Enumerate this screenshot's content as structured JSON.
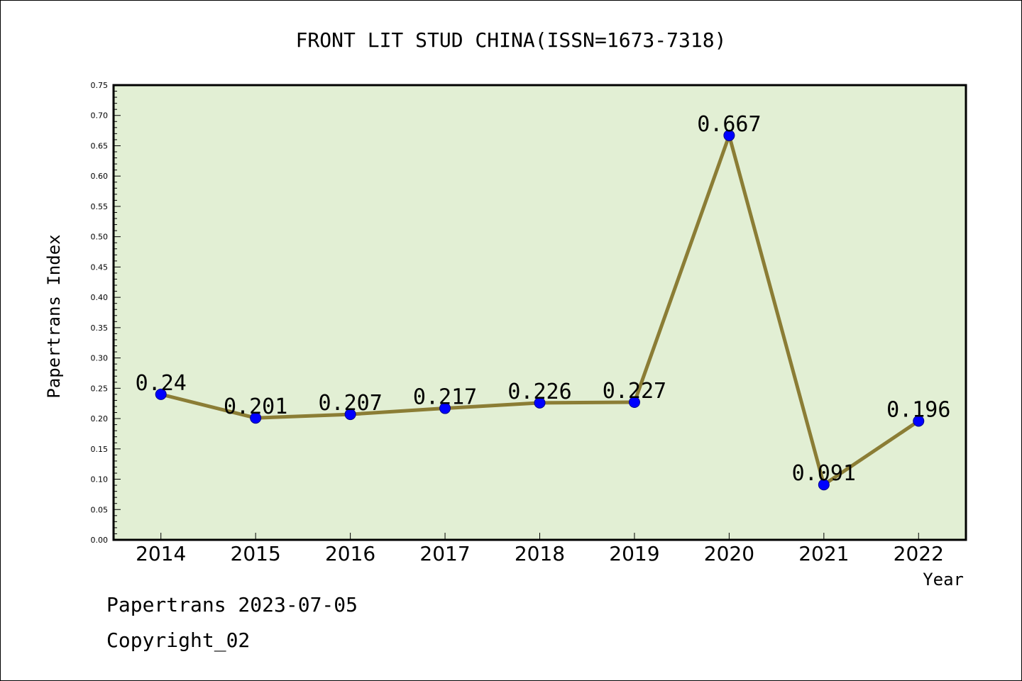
{
  "chart_data": {
    "type": "line",
    "title": "FRONT LIT STUD CHINA(ISSN=1673-7318)",
    "xlabel": "Year",
    "ylabel": "Papertrans Index",
    "categories": [
      "2014",
      "2015",
      "2016",
      "2017",
      "2018",
      "2019",
      "2020",
      "2021",
      "2022"
    ],
    "values": [
      0.24,
      0.201,
      0.207,
      0.217,
      0.226,
      0.227,
      0.667,
      0.091,
      0.196
    ],
    "data_labels": [
      "0.24",
      "0.201",
      "0.207",
      "0.217",
      "0.226",
      "0.227",
      "0.667",
      "0.091",
      "0.196"
    ],
    "ylim": [
      0,
      0.75
    ],
    "yticks": [
      "0.00",
      "0.05",
      "0.10",
      "0.15",
      "0.20",
      "0.25",
      "0.30",
      "0.35",
      "0.40",
      "0.45",
      "0.50",
      "0.55",
      "0.60",
      "0.65",
      "0.70",
      "0.75"
    ],
    "grid": false,
    "colors": {
      "plot_background": "#e2efd4",
      "line": "#8b7d35",
      "marker": "#0000ff"
    }
  },
  "footer": {
    "date_line": "Papertrans 2023-07-05",
    "copyright": "Copyright_02"
  }
}
